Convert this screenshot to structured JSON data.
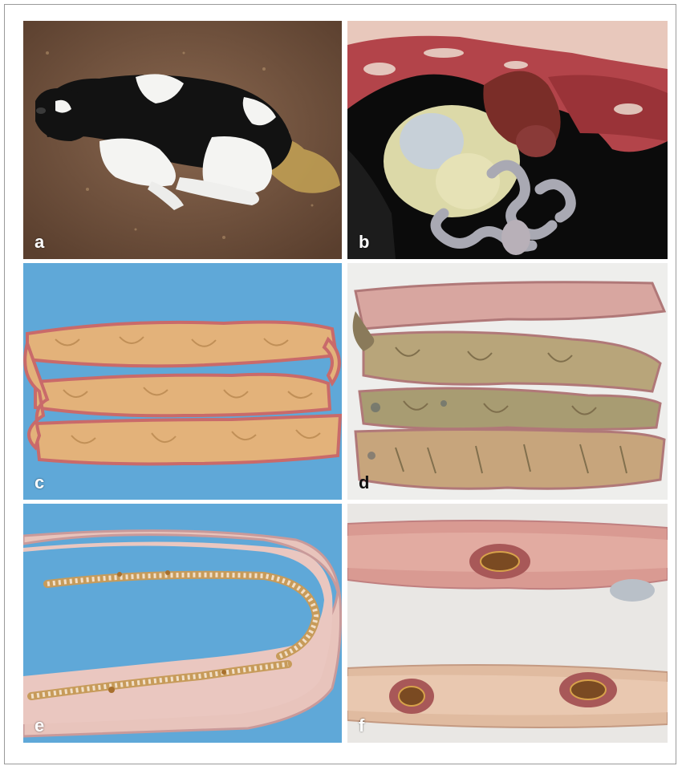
{
  "panels": [
    {
      "id": "a",
      "label": "a"
    },
    {
      "id": "b",
      "label": "b"
    },
    {
      "id": "c",
      "label": "c"
    },
    {
      "id": "d",
      "label": "d"
    },
    {
      "id": "e",
      "label": "e"
    },
    {
      "id": "f",
      "label": "f"
    }
  ],
  "colors": {
    "floor": "#7a5a44",
    "calf_black": "#121212",
    "calf_white": "#f4f4f2",
    "blue_background": "#5fa8d8",
    "intestine_content": "#e3b27a",
    "mucosa_pink": "#d98a8a",
    "liver": "#7a2d28",
    "abomasum": "#dcd9a8"
  }
}
